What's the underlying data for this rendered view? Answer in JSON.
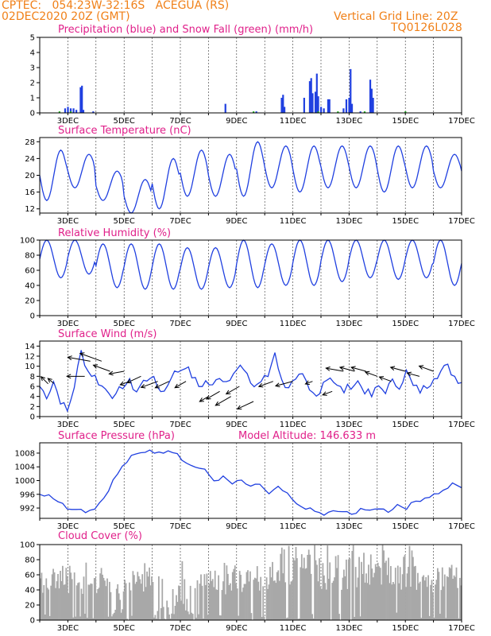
{
  "header": {
    "line1": "CPTEC:   054:23W-32:16S   ACEGUA (RS)",
    "line2": "02DEC2020 20Z (GMT)",
    "grid_note": "Vertical Grid Line: 20Z",
    "code": "TQ0126L028"
  },
  "colors": {
    "header": "#f08018",
    "title": "#e0208a",
    "series": "#2040e0",
    "snow": "#20b020",
    "cloud": "#a8a8a8",
    "grid": "#333333"
  },
  "x_labels": [
    "3DEC",
    "5DEC",
    "7DEC",
    "9DEC",
    "11DEC",
    "13DEC",
    "15DEC",
    "17DEC"
  ],
  "x_range_days": [
    2.0,
    17.0
  ],
  "chart_data": [
    {
      "id": "precip",
      "type": "bar",
      "title": "Precipitation (blue) and Snow Fall (green) (mm/h)",
      "ylim": [
        0,
        5
      ],
      "yticks": [
        "0",
        "1",
        "2",
        "3",
        "4",
        "5"
      ],
      "bars": [
        [
          2.9,
          0.3
        ],
        [
          3.0,
          0.4
        ],
        [
          3.1,
          0.3
        ],
        [
          3.2,
          0.3
        ],
        [
          3.3,
          0.2
        ],
        [
          3.45,
          1.7
        ],
        [
          3.5,
          1.8
        ],
        [
          3.55,
          0.2
        ],
        [
          3.9,
          0.1
        ],
        [
          8.6,
          0.6
        ],
        [
          9.7,
          0.1
        ],
        [
          10.6,
          1.0
        ],
        [
          10.65,
          1.2
        ],
        [
          10.7,
          0.4
        ],
        [
          11.4,
          1.0
        ],
        [
          11.6,
          2.1
        ],
        [
          11.65,
          2.3
        ],
        [
          11.7,
          1.3
        ],
        [
          11.8,
          1.4
        ],
        [
          11.85,
          2.6
        ],
        [
          11.9,
          1.1
        ],
        [
          12.0,
          0.4
        ],
        [
          12.1,
          0.3
        ],
        [
          12.25,
          0.9
        ],
        [
          12.3,
          0.9
        ],
        [
          12.8,
          0.3
        ],
        [
          12.9,
          0.9
        ],
        [
          13.0,
          1.0
        ],
        [
          13.05,
          2.9
        ],
        [
          13.1,
          0.6
        ],
        [
          13.4,
          0.1
        ],
        [
          13.75,
          2.2
        ],
        [
          13.8,
          1.6
        ],
        [
          13.85,
          1.0
        ]
      ],
      "snow": [
        [
          2.7,
          0.1
        ],
        [
          3.1,
          0.1
        ],
        [
          9.6,
          0.1
        ],
        [
          11.9,
          0.1
        ],
        [
          12.6,
          0.1
        ],
        [
          13.55,
          0.1
        ],
        [
          15.0,
          0.1
        ]
      ]
    },
    {
      "id": "temp",
      "type": "line",
      "title": "Surface Temperature (nC)",
      "ylim": [
        11,
        29
      ],
      "yticks": [
        "12",
        "16",
        "20",
        "24",
        "28"
      ],
      "ytickvals": [
        12,
        16,
        20,
        24,
        28
      ],
      "series": {
        "min": [
          14,
          17,
          14,
          11,
          12,
          15,
          15,
          15,
          17,
          16,
          17,
          17,
          16,
          17,
          17,
          18
        ],
        "max": [
          26,
          25,
          21,
          19,
          24,
          26,
          25,
          28,
          27,
          27,
          27,
          27,
          27,
          27,
          25,
          24
        ]
      }
    },
    {
      "id": "rh",
      "type": "line",
      "title": "Relative Humidity (%)",
      "ylim": [
        0,
        100
      ],
      "yticks": [
        "0",
        "20",
        "40",
        "60",
        "80",
        "100"
      ],
      "ytickvals": [
        0,
        20,
        40,
        60,
        80,
        100
      ],
      "series": {
        "max": [
          100,
          100,
          95,
          95,
          95,
          90,
          90,
          100,
          95,
          100,
          100,
          100,
          100,
          100,
          100,
          100
        ],
        "min": [
          50,
          55,
          37,
          35,
          35,
          35,
          37,
          37,
          40,
          40,
          45,
          50,
          48,
          50,
          40,
          38
        ]
      }
    },
    {
      "id": "wind",
      "type": "line",
      "title": "Surface Wind (m/s)",
      "ylim": [
        0,
        15
      ],
      "yticks": [
        "0",
        "2",
        "4",
        "6",
        "8",
        "10",
        "12",
        "14"
      ],
      "ytickvals": [
        0,
        2,
        4,
        6,
        8,
        10,
        12,
        14
      ],
      "series": [
        6,
        4,
        7,
        3,
        1,
        6,
        13,
        9,
        8,
        6,
        5,
        4,
        6,
        7,
        5,
        7,
        8,
        6,
        5,
        8,
        9,
        10,
        8,
        6,
        7,
        6,
        8,
        7,
        9,
        10,
        8,
        6,
        7,
        8,
        13,
        7,
        6,
        7,
        8,
        5,
        4,
        7,
        8,
        6,
        5,
        6,
        7,
        5,
        4,
        6,
        5,
        7,
        6,
        9,
        6,
        5,
        6,
        8,
        9,
        10,
        8,
        7
      ],
      "arrows": [
        [
          2.3,
          6.5,
          45,
          8
        ],
        [
          2.5,
          6.6,
          40,
          6
        ],
        [
          3.6,
          8,
          0,
          14
        ],
        [
          3.8,
          11,
          10,
          18
        ],
        [
          4.2,
          11,
          20,
          18
        ],
        [
          4.5,
          9,
          20,
          14
        ],
        [
          5.0,
          9,
          -10,
          12
        ],
        [
          5.2,
          7,
          -20,
          8
        ],
        [
          5.6,
          8,
          -25,
          12
        ],
        [
          6.2,
          7,
          -20,
          14
        ],
        [
          6.6,
          7,
          -25,
          12
        ],
        [
          7.2,
          7,
          -30,
          10
        ],
        [
          8.0,
          4,
          -30,
          8
        ],
        [
          8.4,
          5,
          -30,
          12
        ],
        [
          8.8,
          4,
          -30,
          14
        ],
        [
          9.1,
          6,
          -30,
          12
        ],
        [
          9.6,
          3,
          -25,
          14
        ],
        [
          10.3,
          7,
          -20,
          12
        ],
        [
          11.0,
          7,
          -15,
          14
        ],
        [
          11.7,
          7,
          -20,
          6
        ],
        [
          12.4,
          5,
          -20,
          8
        ],
        [
          12.8,
          9,
          10,
          14
        ],
        [
          13.2,
          9,
          15,
          12
        ],
        [
          13.6,
          9,
          15,
          12
        ],
        [
          14.0,
          8,
          20,
          10
        ],
        [
          14.5,
          7,
          20,
          10
        ],
        [
          15.0,
          9,
          15,
          12
        ],
        [
          15.5,
          8,
          15,
          10
        ],
        [
          16.0,
          9,
          20,
          12
        ]
      ]
    },
    {
      "id": "pressure",
      "type": "line",
      "title": "Surface Pressure (hPa)",
      "ylim": [
        989,
        1011
      ],
      "yticks": [
        "992",
        "996",
        "1000",
        "1004",
        "1008"
      ],
      "ytickvals": [
        992,
        996,
        1000,
        1004,
        1008
      ],
      "series": [
        996,
        996,
        994,
        992,
        992,
        991,
        992,
        995,
        1000,
        1004,
        1007,
        1008,
        1009,
        1008,
        1009,
        1008,
        1005,
        1004,
        1003,
        1000,
        1001,
        999,
        1000,
        998,
        999,
        996,
        998,
        996,
        993,
        992,
        991,
        990,
        991,
        991,
        990,
        992,
        991,
        992,
        991,
        993,
        992,
        994,
        995,
        996,
        997,
        999,
        998
      ],
      "altitude_label": "Model Altitude: 146.633 m"
    },
    {
      "id": "cloud",
      "type": "area",
      "title": "Cloud Cover (%)",
      "ylim": [
        0,
        100
      ],
      "yticks": [
        "0",
        "20",
        "40",
        "60",
        "80",
        "100"
      ],
      "ytickvals": [
        0,
        20,
        40,
        60,
        80,
        100
      ]
    }
  ]
}
